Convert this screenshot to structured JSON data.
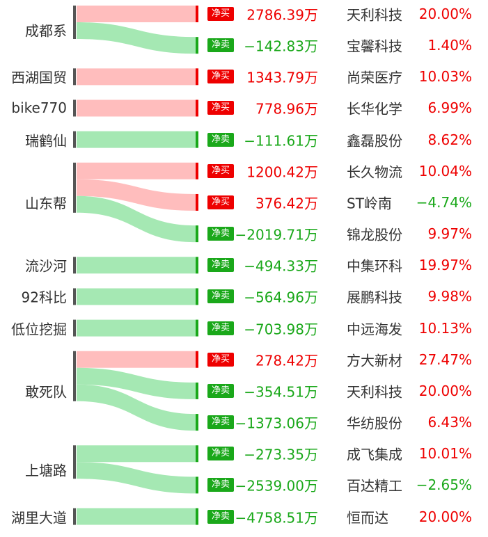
{
  "colors": {
    "buy": "#ee0000",
    "sell": "#1aa81a",
    "buy_flow": "#ffbdbd",
    "sell_flow": "#a5e8b3",
    "buy_bar": "#ee0000",
    "sell_bar": "#1aa81a",
    "node": "#555555",
    "text": "#333333"
  },
  "sources": [
    {
      "name": "成都系",
      "count": 2
    },
    {
      "name": "西湖国贸",
      "count": 1
    },
    {
      "name": "bike770",
      "count": 1
    },
    {
      "name": "瑞鹤仙",
      "count": 1
    },
    {
      "name": "山东帮",
      "count": 3
    },
    {
      "name": "流沙河",
      "count": 1
    },
    {
      "name": "92科比",
      "count": 1
    },
    {
      "name": "低位挖掘",
      "count": 1
    },
    {
      "name": "敢死队",
      "count": 3
    },
    {
      "name": "上塘路",
      "count": 2
    },
    {
      "name": "湖里大道",
      "count": 1
    }
  ],
  "rows": [
    {
      "source": "成都系",
      "type": "buy",
      "badge": "净买",
      "amount": "2786.39万",
      "stock": "天利科技",
      "pct": "20.00%",
      "pct_color": "red"
    },
    {
      "source": "成都系",
      "type": "sell",
      "badge": "净卖",
      "amount": "−142.83万",
      "stock": "宝馨科技",
      "pct": "1.40%",
      "pct_color": "red"
    },
    {
      "source": "西湖国贸",
      "type": "buy",
      "badge": "净买",
      "amount": "1343.79万",
      "stock": "尚荣医疗",
      "pct": "10.03%",
      "pct_color": "red"
    },
    {
      "source": "bike770",
      "type": "buy",
      "badge": "净买",
      "amount": "778.96万",
      "stock": "长华化学",
      "pct": "6.99%",
      "pct_color": "red"
    },
    {
      "source": "瑞鹤仙",
      "type": "sell",
      "badge": "净卖",
      "amount": "−111.61万",
      "stock": "鑫磊股份",
      "pct": "8.62%",
      "pct_color": "red"
    },
    {
      "source": "山东帮",
      "type": "buy",
      "badge": "净买",
      "amount": "1200.42万",
      "stock": "长久物流",
      "pct": "10.04%",
      "pct_color": "red"
    },
    {
      "source": "山东帮",
      "type": "buy",
      "badge": "净买",
      "amount": "376.42万",
      "stock": "ST岭南",
      "pct": "−4.74%",
      "pct_color": "green"
    },
    {
      "source": "山东帮",
      "type": "sell",
      "badge": "净卖",
      "amount": "−2019.71万",
      "stock": "锦龙股份",
      "pct": "9.97%",
      "pct_color": "red"
    },
    {
      "source": "流沙河",
      "type": "sell",
      "badge": "净卖",
      "amount": "−494.33万",
      "stock": "中集环科",
      "pct": "19.97%",
      "pct_color": "red"
    },
    {
      "source": "92科比",
      "type": "sell",
      "badge": "净卖",
      "amount": "−564.96万",
      "stock": "展鹏科技",
      "pct": "9.98%",
      "pct_color": "red"
    },
    {
      "source": "低位挖掘",
      "type": "sell",
      "badge": "净卖",
      "amount": "−703.98万",
      "stock": "中远海发",
      "pct": "10.13%",
      "pct_color": "red"
    },
    {
      "source": "敢死队",
      "type": "buy",
      "badge": "净买",
      "amount": "278.42万",
      "stock": "方大新材",
      "pct": "27.47%",
      "pct_color": "red"
    },
    {
      "source": "敢死队",
      "type": "sell",
      "badge": "净卖",
      "amount": "−354.51万",
      "stock": "天利科技",
      "pct": "20.00%",
      "pct_color": "red"
    },
    {
      "source": "敢死队",
      "type": "sell",
      "badge": "净卖",
      "amount": "−1373.06万",
      "stock": "华纺股份",
      "pct": "6.43%",
      "pct_color": "red"
    },
    {
      "source": "上塘路",
      "type": "sell",
      "badge": "净卖",
      "amount": "−273.35万",
      "stock": "成飞集成",
      "pct": "10.01%",
      "pct_color": "red"
    },
    {
      "source": "上塘路",
      "type": "sell",
      "badge": "净卖",
      "amount": "−2539.00万",
      "stock": "百达精工",
      "pct": "−2.65%",
      "pct_color": "green"
    },
    {
      "source": "湖里大道",
      "type": "sell",
      "badge": "净卖",
      "amount": "−4758.51万",
      "stock": "恒而达",
      "pct": "20.00%",
      "pct_color": "red"
    }
  ]
}
